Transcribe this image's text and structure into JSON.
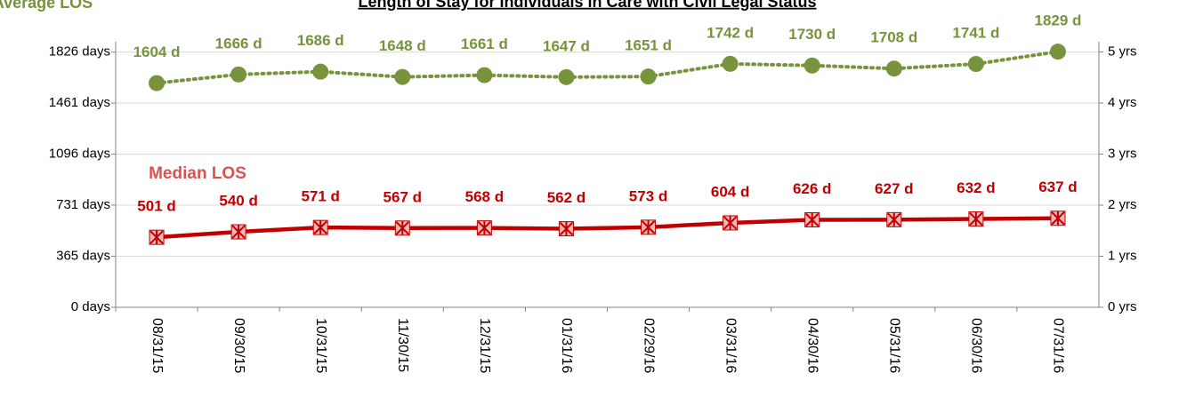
{
  "chart_data": {
    "type": "line",
    "title": "Length of Stay for Individuals in Care with Civil Legal Status",
    "categories": [
      "08/31/15",
      "09/30/15",
      "10/31/15",
      "11/30/15",
      "12/31/15",
      "01/31/16",
      "02/29/16",
      "03/31/16",
      "04/30/16",
      "05/31/16",
      "06/30/16",
      "07/31/16"
    ],
    "series": [
      {
        "name": "Average LOS",
        "color": "#77933c",
        "style": "dotted",
        "marker": "circle",
        "values": [
          1604,
          1666,
          1686,
          1648,
          1661,
          1647,
          1651,
          1742,
          1730,
          1708,
          1741,
          1829
        ],
        "value_labels": [
          "1604 d",
          "1666 d",
          "1686 d",
          "1648 d",
          "1661 d",
          "1647 d",
          "1651 d",
          "1742 d",
          "1730 d",
          "1708 d",
          "1741 d",
          "1829 d"
        ]
      },
      {
        "name": "Median LOS",
        "color": "#c00000",
        "style": "solid",
        "marker": "asterisk",
        "values": [
          501,
          540,
          571,
          567,
          568,
          562,
          573,
          604,
          626,
          627,
          632,
          637
        ],
        "value_labels": [
          "501 d",
          "540 d",
          "571 d",
          "567 d",
          "568 d",
          "562 d",
          "573 d",
          "604 d",
          "626 d",
          "627 d",
          "632 d",
          "637 d"
        ]
      }
    ],
    "ylim": [
      0,
      1900
    ],
    "yticks": [
      {
        "value": 0,
        "label": "0 days"
      },
      {
        "value": 365,
        "label": "365 days"
      },
      {
        "value": 731,
        "label": "731 days"
      },
      {
        "value": 1096,
        "label": "1096 days"
      },
      {
        "value": 1461,
        "label": "1461 days"
      },
      {
        "value": 1826,
        "label": "1826 days"
      }
    ],
    "y2lim": [
      0,
      5.2
    ],
    "y2ticks": [
      {
        "value": 0,
        "label": "0 yrs"
      },
      {
        "value": 1,
        "label": "1 yrs"
      },
      {
        "value": 2,
        "label": "2 yrs"
      },
      {
        "value": 3,
        "label": "3 yrs"
      },
      {
        "value": 4,
        "label": "4 yrs"
      },
      {
        "value": 5,
        "label": "5 yrs"
      }
    ],
    "grid": true
  }
}
